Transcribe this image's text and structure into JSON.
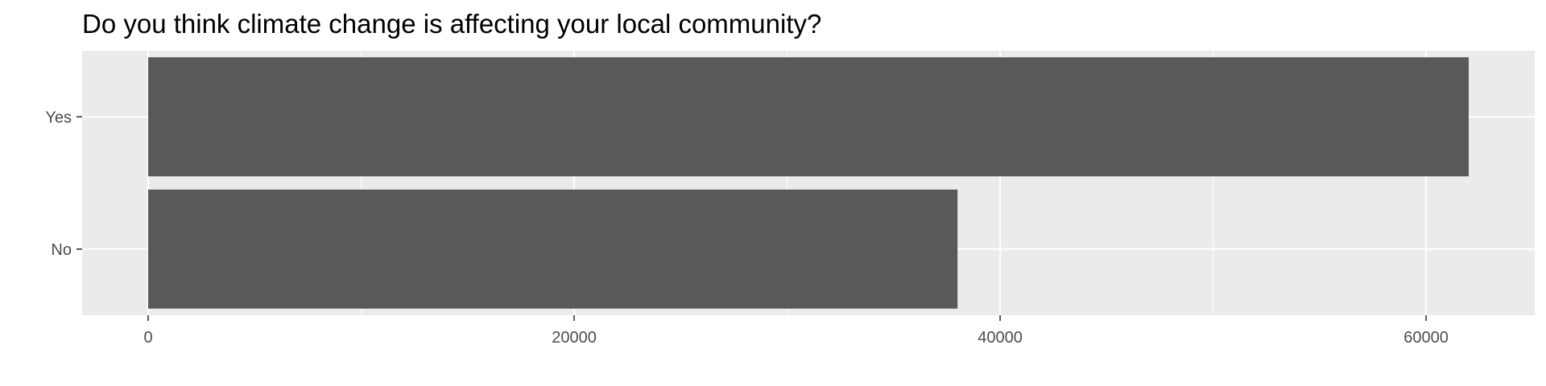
{
  "chart_data": {
    "type": "bar",
    "orientation": "horizontal",
    "title": "Do you think climate change is affecting your local community?",
    "xlabel": "",
    "ylabel": "",
    "categories": [
      "Yes",
      "No"
    ],
    "values": [
      62000,
      38000
    ],
    "xlim": [
      -3100,
      65100
    ],
    "xticks": [
      0,
      20000,
      40000,
      60000
    ],
    "xtick_labels": [
      "0",
      "20000",
      "40000",
      "60000"
    ],
    "grid": true,
    "legend": "none",
    "colors": {
      "panel": "#EBEBEB",
      "grid": "#FFFFFF",
      "bar": "#595959",
      "axis_text": "#4D4D4D",
      "tick": "#333333"
    }
  }
}
